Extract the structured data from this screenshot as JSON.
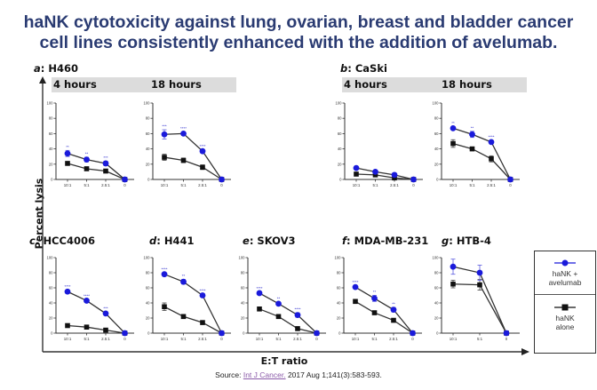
{
  "title": {
    "line1": "haNK cytotoxicity against lung, ovarian, breast and bladder cancer",
    "line2": "cell lines consistently enhanced with the addition of avelumab."
  },
  "axes": {
    "ylabel": "Percent lysis",
    "xlabel": "E:T ratio"
  },
  "legend": {
    "items": [
      {
        "label_line1": "haNK +",
        "label_line2": "avelumab",
        "color": "#1a1adb",
        "marker": "circle"
      },
      {
        "label_line1": "haNK",
        "label_line2": "alone",
        "color": "#111111",
        "marker": "square"
      }
    ]
  },
  "source": {
    "prefix": "Source:",
    "link_text": "Int J Cancer.",
    "suffix": "2017 Aug 1;141(3):583-593."
  },
  "colors": {
    "title": "#2a3b72",
    "avelumab": "#1a1adb",
    "alone": "#111111",
    "band": "#dcdcdc"
  },
  "groups": [
    {
      "letter": "a",
      "name": "H460",
      "bands": [
        "4 hours",
        "18 hours"
      ]
    },
    {
      "letter": "b",
      "name": "CaSki",
      "bands": [
        "4 hours",
        "18 hours"
      ]
    },
    {
      "letter": "c",
      "name": "HCC4006"
    },
    {
      "letter": "d",
      "name": "H441"
    },
    {
      "letter": "e",
      "name": "SKOV3"
    },
    {
      "letter": "f",
      "name": "MDA-MB-231"
    },
    {
      "letter": "g",
      "name": "HTB-4"
    }
  ],
  "chart_data": [
    {
      "type": "line",
      "title": "a: H460 — 4 hours",
      "categories": [
        "10:1",
        "5:1",
        "2.5:1",
        "0"
      ],
      "ylim": [
        0,
        100
      ],
      "yticks": [
        0,
        20,
        40,
        60,
        80,
        100
      ],
      "series": [
        {
          "name": "haNK + avelumab",
          "values": [
            34,
            26,
            21,
            0
          ],
          "errors": [
            4,
            3,
            3,
            0
          ],
          "sig": [
            "**",
            "**",
            "***",
            ""
          ]
        },
        {
          "name": "haNK alone",
          "values": [
            21,
            14,
            11,
            0
          ],
          "errors": [
            1,
            1,
            1,
            0
          ]
        }
      ]
    },
    {
      "type": "line",
      "title": "a: H460 — 18 hours",
      "categories": [
        "10:1",
        "5:1",
        "2.5:1",
        "0"
      ],
      "ylim": [
        0,
        100
      ],
      "yticks": [
        0,
        20,
        40,
        60,
        80,
        100
      ],
      "series": [
        {
          "name": "haNK + avelumab",
          "values": [
            59,
            60,
            37,
            0
          ],
          "errors": [
            6,
            2,
            2,
            0
          ],
          "sig": [
            "***",
            "****",
            "****",
            ""
          ]
        },
        {
          "name": "haNK alone",
          "values": [
            29,
            25,
            16,
            0
          ],
          "errors": [
            4,
            3,
            3,
            0
          ]
        }
      ]
    },
    {
      "type": "line",
      "title": "b: CaSki — 4 hours",
      "categories": [
        "10:1",
        "5:1",
        "2.5:1",
        "0"
      ],
      "ylim": [
        0,
        100
      ],
      "yticks": [
        0,
        20,
        40,
        60,
        80,
        100
      ],
      "series": [
        {
          "name": "haNK + avelumab",
          "values": [
            15,
            10,
            6,
            0
          ],
          "errors": [
            1,
            1,
            1,
            0
          ],
          "sig": [
            "",
            "",
            "",
            " "
          ]
        },
        {
          "name": "haNK alone",
          "values": [
            7,
            6,
            2,
            0
          ],
          "errors": [
            1,
            1,
            1,
            0
          ]
        }
      ]
    },
    {
      "type": "line",
      "title": "b: CaSki — 18 hours",
      "categories": [
        "10:1",
        "5:1",
        "2.5:1",
        "0"
      ],
      "ylim": [
        0,
        100
      ],
      "yticks": [
        0,
        20,
        40,
        60,
        80,
        100
      ],
      "series": [
        {
          "name": "haNK + avelumab",
          "values": [
            67,
            59,
            49,
            0
          ],
          "errors": [
            2,
            4,
            2,
            0
          ],
          "sig": [
            "**",
            "**",
            "****",
            ""
          ]
        },
        {
          "name": "haNK alone",
          "values": [
            47,
            40,
            27,
            0
          ],
          "errors": [
            5,
            2,
            4,
            0
          ]
        }
      ]
    },
    {
      "type": "line",
      "title": "c: HCC4006",
      "categories": [
        "10:1",
        "5:1",
        "2.5:1",
        "0"
      ],
      "ylim": [
        0,
        100
      ],
      "yticks": [
        0,
        20,
        40,
        60,
        80,
        100
      ],
      "series": [
        {
          "name": "haNK + avelumab",
          "values": [
            55,
            43,
            26,
            0
          ],
          "errors": [
            2,
            2,
            2,
            0
          ],
          "sig": [
            "****",
            "****",
            "***",
            ""
          ]
        },
        {
          "name": "haNK alone",
          "values": [
            10,
            8,
            4,
            0
          ],
          "errors": [
            1,
            1,
            1,
            0
          ]
        }
      ]
    },
    {
      "type": "line",
      "title": "d: H441",
      "categories": [
        "10:1",
        "5:1",
        "2.5:1",
        "0"
      ],
      "ylim": [
        0,
        100
      ],
      "yticks": [
        0,
        20,
        40,
        60,
        80,
        100
      ],
      "series": [
        {
          "name": "haNK + avelumab",
          "values": [
            78,
            68,
            50,
            0
          ],
          "errors": [
            2,
            3,
            2,
            0
          ],
          "sig": [
            "****",
            "**",
            "****",
            ""
          ]
        },
        {
          "name": "haNK alone",
          "values": [
            35,
            22,
            14,
            0
          ],
          "errors": [
            5,
            1,
            1,
            0
          ]
        }
      ]
    },
    {
      "type": "line",
      "title": "e: SKOV3",
      "categories": [
        "10:1",
        "5:1",
        "2.5:1",
        "0"
      ],
      "ylim": [
        0,
        100
      ],
      "yticks": [
        0,
        20,
        40,
        60,
        80,
        100
      ],
      "series": [
        {
          "name": "haNK + avelumab",
          "values": [
            53,
            39,
            24,
            0
          ],
          "errors": [
            2,
            2,
            3,
            0
          ],
          "sig": [
            "****",
            "**",
            "****",
            ""
          ]
        },
        {
          "name": "haNK alone",
          "values": [
            32,
            22,
            6,
            0
          ],
          "errors": [
            1,
            1,
            1,
            0
          ]
        }
      ]
    },
    {
      "type": "line",
      "title": "f: MDA-MB-231",
      "categories": [
        "10:1",
        "5:1",
        "2.5:1",
        "0"
      ],
      "ylim": [
        0,
        100
      ],
      "yticks": [
        0,
        20,
        40,
        60,
        80,
        100
      ],
      "series": [
        {
          "name": "haNK + avelumab",
          "values": [
            61,
            46,
            31,
            0
          ],
          "errors": [
            2,
            4,
            3,
            0
          ],
          "sig": [
            "****",
            "**",
            "**",
            ""
          ]
        },
        {
          "name": "haNK alone",
          "values": [
            42,
            27,
            17,
            0
          ],
          "errors": [
            1,
            1,
            1,
            0
          ]
        }
      ]
    },
    {
      "type": "line",
      "title": "g: HTB-4",
      "categories": [
        "10:1",
        "5:1",
        "0"
      ],
      "ylim": [
        0,
        100
      ],
      "yticks": [
        0,
        20,
        40,
        60,
        80,
        100
      ],
      "series": [
        {
          "name": "haNK + avelumab",
          "values": [
            88,
            80,
            0
          ],
          "errors": [
            10,
            10,
            0
          ],
          "sig": [
            "",
            "",
            ""
          ]
        },
        {
          "name": "haNK alone",
          "values": [
            65,
            64,
            0
          ],
          "errors": [
            5,
            7,
            0
          ]
        }
      ]
    }
  ]
}
